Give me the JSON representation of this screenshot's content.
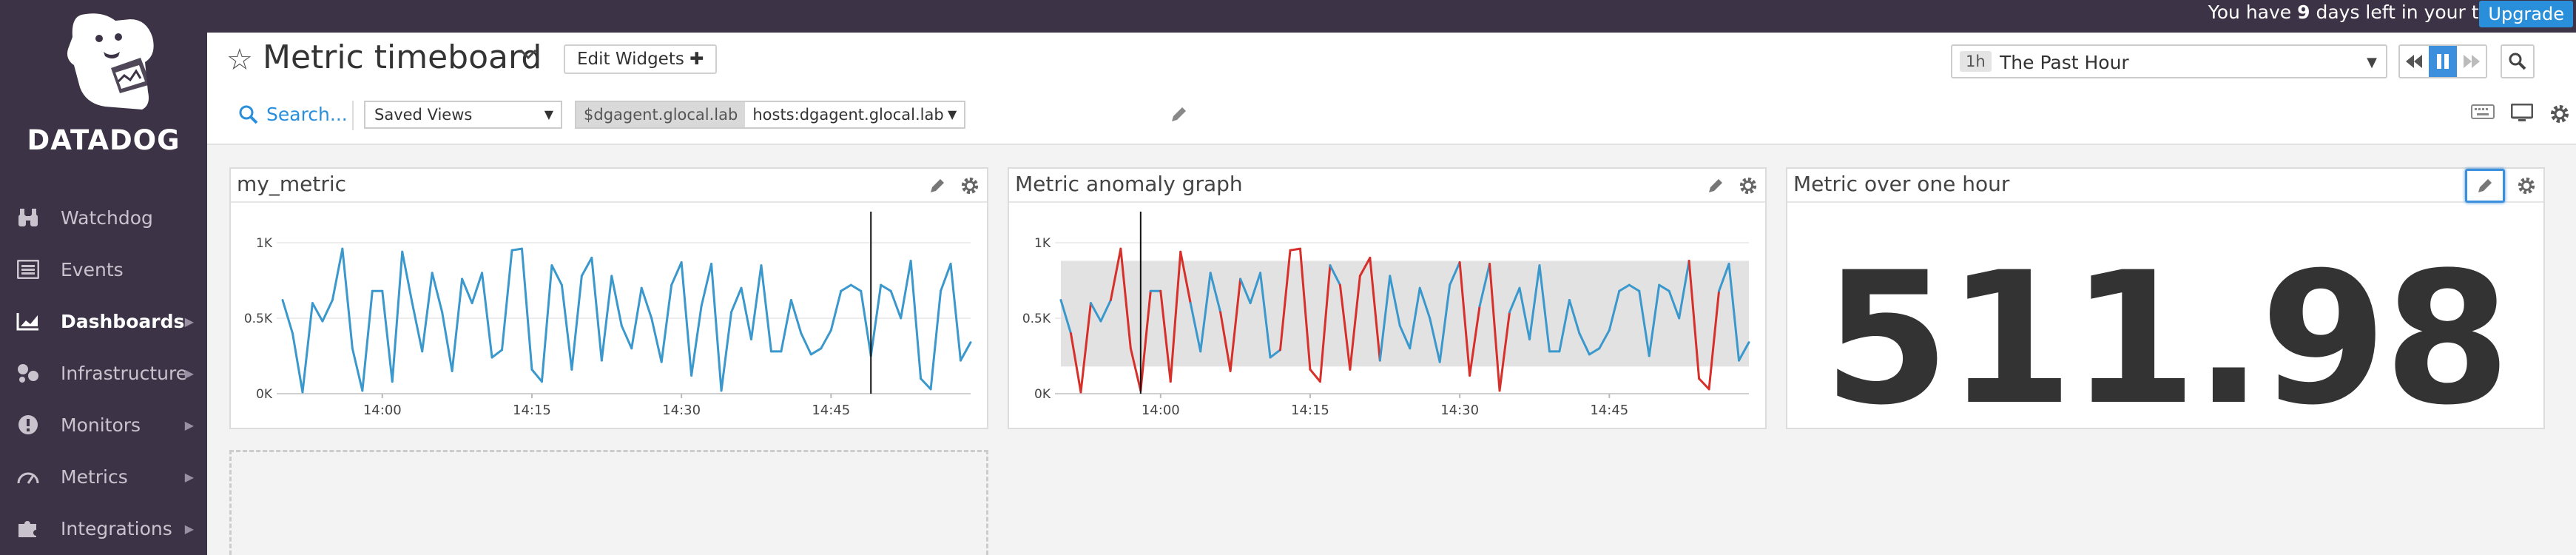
{
  "topbar": {
    "trial_prefix": "You have ",
    "trial_days": "9",
    "trial_suffix": " days left in your trial.",
    "upgrade_label": "Upgrade"
  },
  "sidebar": {
    "logo_text": "DATADOG",
    "items": [
      {
        "label": "Watchdog",
        "icon": "binoculars-icon",
        "active": false,
        "chevron": false
      },
      {
        "label": "Events",
        "icon": "events-list-icon",
        "active": false,
        "chevron": false
      },
      {
        "label": "Dashboards",
        "icon": "dashboard-chart-icon",
        "active": true,
        "chevron": true
      },
      {
        "label": "Infrastructure",
        "icon": "infrastructure-nodes-icon",
        "active": false,
        "chevron": true
      },
      {
        "label": "Monitors",
        "icon": "alert-icon",
        "active": false,
        "chevron": true
      },
      {
        "label": "Metrics",
        "icon": "gauge-icon",
        "active": false,
        "chevron": true
      },
      {
        "label": "Integrations",
        "icon": "puzzle-icon",
        "active": false,
        "chevron": true
      }
    ]
  },
  "header": {
    "title": "Metric timeboard",
    "edit_widgets_label": "Edit Widgets",
    "search_label": "Search...",
    "saved_views_label": "Saved Views",
    "template_var_name": "$dgagent.glocal.lab",
    "template_var_value": "hosts:dgagent.glocal.lab",
    "timeframe_badge": "1h",
    "timeframe_label": "The Past Hour"
  },
  "colors": {
    "accent": "#2a8fdb",
    "sidebar_bg": "#3d3346",
    "series_blue": "#3a98cc",
    "anomaly_red": "#d7302b",
    "band_gray": "#e2e2e2"
  },
  "widgets": {
    "my_metric": {
      "title": "my_metric"
    },
    "anomaly": {
      "title": "Metric anomaly graph"
    },
    "query_value": {
      "title": "Metric over one hour",
      "value": "511.98"
    }
  },
  "chart_data": [
    {
      "type": "line",
      "name": "my_metric",
      "x_ticks": [
        "14:00",
        "14:15",
        "14:30",
        "14:45"
      ],
      "y_ticks": [
        "0K",
        "0.5K",
        "1K"
      ],
      "ylim": [
        0,
        1000
      ],
      "values": [
        620,
        400,
        10,
        600,
        480,
        620,
        960,
        300,
        20,
        680,
        680,
        80,
        940,
        600,
        280,
        800,
        540,
        150,
        760,
        600,
        800,
        240,
        290,
        950,
        960,
        160,
        80,
        850,
        720,
        160,
        780,
        900,
        220,
        780,
        450,
        300,
        700,
        500,
        210,
        720,
        870,
        120,
        580,
        860,
        20,
        540,
        700,
        360,
        850,
        280,
        280,
        620,
        400,
        260,
        300,
        420,
        680,
        720,
        680,
        250,
        720,
        680,
        500,
        880,
        100,
        30,
        680,
        860,
        220,
        340
      ],
      "cursor_index": 59
    },
    {
      "type": "line",
      "name": "anomaly",
      "x_ticks": [
        "14:00",
        "14:15",
        "14:30",
        "14:45"
      ],
      "y_ticks": [
        "0K",
        "0.5K",
        "1K"
      ],
      "ylim": [
        0,
        1000
      ],
      "values": [
        620,
        400,
        10,
        600,
        480,
        620,
        960,
        300,
        20,
        680,
        680,
        80,
        940,
        600,
        280,
        800,
        540,
        150,
        760,
        600,
        800,
        240,
        290,
        950,
        960,
        160,
        80,
        850,
        720,
        160,
        780,
        900,
        220,
        780,
        450,
        300,
        700,
        500,
        210,
        720,
        870,
        120,
        580,
        860,
        20,
        540,
        700,
        360,
        850,
        280,
        280,
        620,
        400,
        260,
        300,
        420,
        680,
        720,
        680,
        250,
        720,
        680,
        500,
        880,
        100,
        30,
        680,
        860,
        220,
        340
      ],
      "band_upper": 880,
      "band_lower": 180,
      "cursor_index": 8
    }
  ]
}
